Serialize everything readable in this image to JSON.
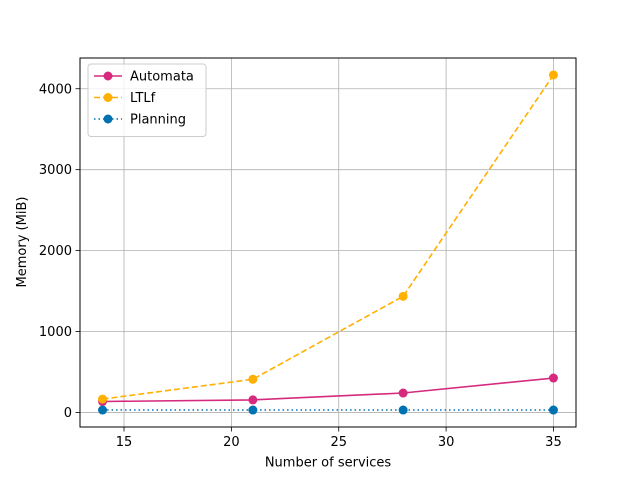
{
  "chart_data": {
    "type": "line",
    "title": "",
    "xlabel": "Number of services",
    "ylabel": "Memory (MiB)",
    "xlim": [
      12.95,
      36.05
    ],
    "ylim": [
      -180,
      4380
    ],
    "xticks": [
      15,
      20,
      25,
      30,
      35
    ],
    "yticks": [
      0,
      1000,
      2000,
      3000,
      4000
    ],
    "grid": true,
    "legend_position": "upper-left",
    "x": [
      14,
      21,
      28,
      35
    ],
    "series": [
      {
        "name": "Automata",
        "values": [
          135,
          155,
          240,
          425
        ],
        "color": "#d62a7e",
        "line_style": "solid",
        "marker": "circle"
      },
      {
        "name": "LTLf",
        "values": [
          165,
          410,
          1435,
          4170
        ],
        "color": "#ffb000",
        "line_style": "dashed",
        "marker": "circle"
      },
      {
        "name": "Planning",
        "values": [
          30,
          30,
          30,
          30
        ],
        "color": "#0072b2",
        "line_style": "dotted",
        "marker": "circle"
      }
    ]
  }
}
